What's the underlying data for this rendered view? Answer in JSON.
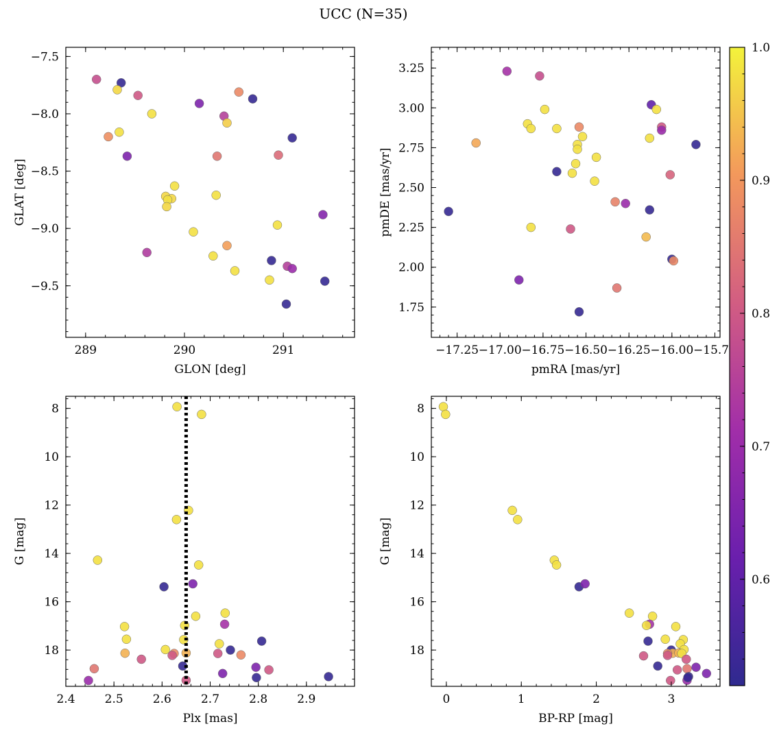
{
  "figure": {
    "title": "UCC (N=35)"
  },
  "colors": {
    "low": "#2f2a8f",
    "mid": "#a12ea9",
    "high": "#f3f33b",
    "ref_line": "#000000"
  },
  "chart_data": [
    {
      "type": "scatter",
      "id": "glon-glat",
      "xlabel": "GLON [deg]",
      "ylabel": "GLAT [deg]",
      "xlim": [
        288.8,
        291.72
      ],
      "ylim": [
        -9.95,
        -7.42
      ],
      "xticks": [
        289,
        290,
        291
      ],
      "xtick_labels": [
        "289",
        "290",
        "291"
      ],
      "yticks": [
        -7.5,
        -8.0,
        -8.5,
        -9.0,
        -9.5
      ],
      "ytick_labels": [
        "−7.5",
        "−8.0",
        "−8.5",
        "−9.0",
        "−9.5"
      ],
      "points": [
        {
          "x": 289.11,
          "y": -7.7,
          "c": 0.78
        },
        {
          "x": 289.36,
          "y": -7.73,
          "c": 0.53
        },
        {
          "x": 289.32,
          "y": -7.79,
          "c": 0.97
        },
        {
          "x": 289.53,
          "y": -7.84,
          "c": 0.8
        },
        {
          "x": 289.67,
          "y": -8.0,
          "c": 0.98
        },
        {
          "x": 289.34,
          "y": -8.16,
          "c": 0.98
        },
        {
          "x": 289.23,
          "y": -8.2,
          "c": 0.89
        },
        {
          "x": 289.42,
          "y": -8.37,
          "c": 0.65
        },
        {
          "x": 289.9,
          "y": -8.63,
          "c": 0.98
        },
        {
          "x": 289.81,
          "y": -8.72,
          "c": 0.97
        },
        {
          "x": 289.87,
          "y": -8.74,
          "c": 0.97
        },
        {
          "x": 289.83,
          "y": -8.75,
          "c": 0.98
        },
        {
          "x": 289.82,
          "y": -8.81,
          "c": 0.97
        },
        {
          "x": 290.09,
          "y": -9.03,
          "c": 0.98
        },
        {
          "x": 289.62,
          "y": -9.21,
          "c": 0.74
        },
        {
          "x": 290.15,
          "y": -7.91,
          "c": 0.65
        },
        {
          "x": 290.4,
          "y": -8.02,
          "c": 0.75
        },
        {
          "x": 290.43,
          "y": -8.08,
          "c": 0.96
        },
        {
          "x": 290.33,
          "y": -8.37,
          "c": 0.85
        },
        {
          "x": 290.32,
          "y": -8.71,
          "c": 0.98
        },
        {
          "x": 290.43,
          "y": -9.15,
          "c": 0.91
        },
        {
          "x": 290.29,
          "y": -9.24,
          "c": 0.98
        },
        {
          "x": 290.51,
          "y": -9.37,
          "c": 0.98
        },
        {
          "x": 290.55,
          "y": -7.81,
          "c": 0.88
        },
        {
          "x": 290.69,
          "y": -7.87,
          "c": 0.53
        },
        {
          "x": 290.95,
          "y": -8.36,
          "c": 0.83
        },
        {
          "x": 290.94,
          "y": -8.97,
          "c": 0.98
        },
        {
          "x": 290.88,
          "y": -9.28,
          "c": 0.53
        },
        {
          "x": 291.04,
          "y": -9.33,
          "c": 0.75
        },
        {
          "x": 291.09,
          "y": -9.35,
          "c": 0.7
        },
        {
          "x": 290.86,
          "y": -9.45,
          "c": 0.98
        },
        {
          "x": 291.03,
          "y": -9.66,
          "c": 0.53
        },
        {
          "x": 291.09,
          "y": -8.21,
          "c": 0.53
        },
        {
          "x": 291.4,
          "y": -8.88,
          "c": 0.66
        },
        {
          "x": 291.42,
          "y": -9.46,
          "c": 0.53
        }
      ]
    },
    {
      "type": "scatter",
      "id": "pmra-pmde",
      "xlabel": "pmRA [mas/yr]",
      "ylabel": "pmDE [mas/yr]",
      "xlim": [
        -17.4,
        -15.72
      ],
      "ylim": [
        1.56,
        3.38
      ],
      "xticks": [
        -17.25,
        -17.0,
        -16.75,
        -16.5,
        -16.25,
        -16.0,
        -15.75
      ],
      "xtick_labels": [
        "−17.25",
        "−17.00",
        "−16.75",
        "−16.50",
        "−16.25",
        "−16.00",
        "−15.75"
      ],
      "yticks": [
        3.25,
        3.0,
        2.75,
        2.5,
        2.25,
        2.0,
        1.75
      ],
      "ytick_labels": [
        "3.25",
        "3.00",
        "2.75",
        "2.50",
        "2.25",
        "2.00",
        "1.75"
      ],
      "points": [
        {
          "x": -16.96,
          "y": 3.23,
          "c": 0.72
        },
        {
          "x": -16.77,
          "y": 3.2,
          "c": 0.78
        },
        {
          "x": -16.74,
          "y": 2.99,
          "c": 0.98
        },
        {
          "x": -16.84,
          "y": 2.9,
          "c": 0.98
        },
        {
          "x": -16.82,
          "y": 2.87,
          "c": 0.98
        },
        {
          "x": -16.67,
          "y": 2.87,
          "c": 0.98
        },
        {
          "x": -16.54,
          "y": 2.88,
          "c": 0.88
        },
        {
          "x": -16.52,
          "y": 2.82,
          "c": 0.98
        },
        {
          "x": -16.55,
          "y": 2.77,
          "c": 0.98
        },
        {
          "x": -16.55,
          "y": 2.74,
          "c": 0.98
        },
        {
          "x": -16.44,
          "y": 2.69,
          "c": 0.98
        },
        {
          "x": -16.56,
          "y": 2.65,
          "c": 0.98
        },
        {
          "x": -16.67,
          "y": 2.6,
          "c": 0.53
        },
        {
          "x": -16.58,
          "y": 2.59,
          "c": 0.98
        },
        {
          "x": -16.45,
          "y": 2.54,
          "c": 0.98
        },
        {
          "x": -17.14,
          "y": 2.78,
          "c": 0.92
        },
        {
          "x": -17.3,
          "y": 2.35,
          "c": 0.53
        },
        {
          "x": -16.82,
          "y": 2.25,
          "c": 0.98
        },
        {
          "x": -16.59,
          "y": 2.24,
          "c": 0.8
        },
        {
          "x": -16.89,
          "y": 1.92,
          "c": 0.65
        },
        {
          "x": -16.54,
          "y": 1.72,
          "c": 0.53
        },
        {
          "x": -16.33,
          "y": 2.41,
          "c": 0.87
        },
        {
          "x": -16.27,
          "y": 2.4,
          "c": 0.7
        },
        {
          "x": -16.12,
          "y": 3.02,
          "c": 0.6
        },
        {
          "x": -16.09,
          "y": 2.99,
          "c": 0.98
        },
        {
          "x": -16.06,
          "y": 2.88,
          "c": 0.8
        },
        {
          "x": -16.06,
          "y": 2.86,
          "c": 0.7
        },
        {
          "x": -16.13,
          "y": 2.81,
          "c": 0.98
        },
        {
          "x": -15.86,
          "y": 2.77,
          "c": 0.53
        },
        {
          "x": -16.01,
          "y": 2.58,
          "c": 0.82
        },
        {
          "x": -16.13,
          "y": 2.36,
          "c": 0.53
        },
        {
          "x": -16.15,
          "y": 2.19,
          "c": 0.94
        },
        {
          "x": -16.0,
          "y": 2.05,
          "c": 0.53
        },
        {
          "x": -15.99,
          "y": 2.04,
          "c": 0.88
        },
        {
          "x": -16.32,
          "y": 1.87,
          "c": 0.85
        }
      ]
    },
    {
      "type": "scatter",
      "id": "plx-g",
      "xlabel": "Plx [mas]",
      "ylabel": "G [mag]",
      "xlim": [
        2.4,
        3.0
      ],
      "ylim": [
        19.5,
        7.5
      ],
      "y_inverted": true,
      "xticks": [
        2.4,
        2.5,
        2.6,
        2.7,
        2.8,
        2.9
      ],
      "xtick_labels": [
        "2.4",
        "2.5",
        "2.6",
        "2.7",
        "2.8",
        "2.9"
      ],
      "yticks": [
        8,
        10,
        12,
        14,
        16,
        18
      ],
      "ytick_labels": [
        "8",
        "10",
        "12",
        "14",
        "16",
        "18"
      ],
      "vline": 2.65,
      "points": [
        {
          "x": 2.631,
          "y": 7.93,
          "c": 0.98
        },
        {
          "x": 2.682,
          "y": 8.25,
          "c": 0.98
        },
        {
          "x": 2.655,
          "y": 12.22,
          "c": 0.98
        },
        {
          "x": 2.63,
          "y": 12.6,
          "c": 0.98
        },
        {
          "x": 2.466,
          "y": 14.28,
          "c": 0.98
        },
        {
          "x": 2.676,
          "y": 14.48,
          "c": 0.98
        },
        {
          "x": 2.604,
          "y": 15.38,
          "c": 0.53
        },
        {
          "x": 2.664,
          "y": 15.26,
          "c": 0.65
        },
        {
          "x": 2.731,
          "y": 16.47,
          "c": 0.98
        },
        {
          "x": 2.67,
          "y": 16.6,
          "c": 0.98
        },
        {
          "x": 2.73,
          "y": 16.93,
          "c": 0.72
        },
        {
          "x": 2.522,
          "y": 17.03,
          "c": 0.98
        },
        {
          "x": 2.647,
          "y": 16.98,
          "c": 0.98
        },
        {
          "x": 2.526,
          "y": 17.55,
          "c": 0.98
        },
        {
          "x": 2.645,
          "y": 17.57,
          "c": 0.98
        },
        {
          "x": 2.719,
          "y": 17.74,
          "c": 0.98
        },
        {
          "x": 2.807,
          "y": 17.63,
          "c": 0.53
        },
        {
          "x": 2.742,
          "y": 18.0,
          "c": 0.53
        },
        {
          "x": 2.607,
          "y": 17.98,
          "c": 0.98
        },
        {
          "x": 2.523,
          "y": 18.13,
          "c": 0.93
        },
        {
          "x": 2.625,
          "y": 18.14,
          "c": 0.88
        },
        {
          "x": 2.621,
          "y": 18.22,
          "c": 0.8
        },
        {
          "x": 2.65,
          "y": 18.12,
          "c": 0.93
        },
        {
          "x": 2.716,
          "y": 18.14,
          "c": 0.8
        },
        {
          "x": 2.764,
          "y": 18.2,
          "c": 0.88
        },
        {
          "x": 2.557,
          "y": 18.38,
          "c": 0.8
        },
        {
          "x": 2.643,
          "y": 18.66,
          "c": 0.53
        },
        {
          "x": 2.459,
          "y": 18.77,
          "c": 0.85
        },
        {
          "x": 2.795,
          "y": 18.71,
          "c": 0.65
        },
        {
          "x": 2.822,
          "y": 18.82,
          "c": 0.8
        },
        {
          "x": 2.726,
          "y": 18.97,
          "c": 0.65
        },
        {
          "x": 2.796,
          "y": 19.14,
          "c": 0.53
        },
        {
          "x": 2.946,
          "y": 19.1,
          "c": 0.53
        },
        {
          "x": 2.447,
          "y": 19.26,
          "c": 0.7
        },
        {
          "x": 2.65,
          "y": 19.25,
          "c": 0.8
        }
      ]
    },
    {
      "type": "scatter",
      "id": "bprp-g",
      "xlabel": "BP-RP [mag]",
      "ylabel": "G [mag]",
      "xlim": [
        -0.2,
        3.65
      ],
      "ylim": [
        19.5,
        7.5
      ],
      "y_inverted": true,
      "xticks": [
        0,
        1,
        2,
        3
      ],
      "xtick_labels": [
        "0",
        "1",
        "2",
        "3"
      ],
      "yticks": [
        8,
        10,
        12,
        14,
        16,
        18
      ],
      "ytick_labels": [
        "8",
        "10",
        "12",
        "14",
        "16",
        "18"
      ],
      "points": [
        {
          "x": -0.04,
          "y": 7.93,
          "c": 0.98
        },
        {
          "x": -0.01,
          "y": 8.25,
          "c": 0.98
        },
        {
          "x": 0.88,
          "y": 12.22,
          "c": 0.98
        },
        {
          "x": 0.95,
          "y": 12.6,
          "c": 0.98
        },
        {
          "x": 1.44,
          "y": 14.28,
          "c": 0.98
        },
        {
          "x": 1.47,
          "y": 14.48,
          "c": 0.98
        },
        {
          "x": 1.77,
          "y": 15.38,
          "c": 0.53
        },
        {
          "x": 1.85,
          "y": 15.26,
          "c": 0.65
        },
        {
          "x": 2.44,
          "y": 16.47,
          "c": 0.98
        },
        {
          "x": 2.75,
          "y": 16.6,
          "c": 0.98
        },
        {
          "x": 2.71,
          "y": 16.93,
          "c": 0.72
        },
        {
          "x": 3.06,
          "y": 17.03,
          "c": 0.98
        },
        {
          "x": 2.67,
          "y": 16.98,
          "c": 0.98
        },
        {
          "x": 2.92,
          "y": 17.55,
          "c": 0.98
        },
        {
          "x": 3.16,
          "y": 17.57,
          "c": 0.98
        },
        {
          "x": 3.12,
          "y": 17.74,
          "c": 0.98
        },
        {
          "x": 2.69,
          "y": 17.63,
          "c": 0.53
        },
        {
          "x": 3.0,
          "y": 18.0,
          "c": 0.53
        },
        {
          "x": 3.17,
          "y": 17.98,
          "c": 0.98
        },
        {
          "x": 3.02,
          "y": 18.13,
          "c": 0.93
        },
        {
          "x": 2.95,
          "y": 18.14,
          "c": 0.88
        },
        {
          "x": 2.95,
          "y": 18.22,
          "c": 0.8
        },
        {
          "x": 3.1,
          "y": 18.12,
          "c": 0.93
        },
        {
          "x": 3.14,
          "y": 18.14,
          "c": 0.98
        },
        {
          "x": 3.2,
          "y": 18.38,
          "c": 0.8
        },
        {
          "x": 2.63,
          "y": 18.24,
          "c": 0.8
        },
        {
          "x": 2.82,
          "y": 18.66,
          "c": 0.53
        },
        {
          "x": 3.21,
          "y": 18.77,
          "c": 0.85
        },
        {
          "x": 3.33,
          "y": 18.71,
          "c": 0.65
        },
        {
          "x": 3.08,
          "y": 18.82,
          "c": 0.8
        },
        {
          "x": 3.47,
          "y": 18.97,
          "c": 0.65
        },
        {
          "x": 3.23,
          "y": 19.1,
          "c": 0.53
        },
        {
          "x": 2.99,
          "y": 19.26,
          "c": 0.8
        },
        {
          "x": 3.21,
          "y": 19.25,
          "c": 0.7
        },
        {
          "x": 3.22,
          "y": 19.14,
          "c": 0.53
        }
      ]
    }
  ],
  "colorbar": {
    "range": [
      0.52,
      1.0
    ],
    "ticks": [
      1.0,
      0.9,
      0.8,
      0.7,
      0.6
    ],
    "tick_labels": [
      "1.0",
      "0.9",
      "0.8",
      "0.7",
      "0.6"
    ]
  }
}
